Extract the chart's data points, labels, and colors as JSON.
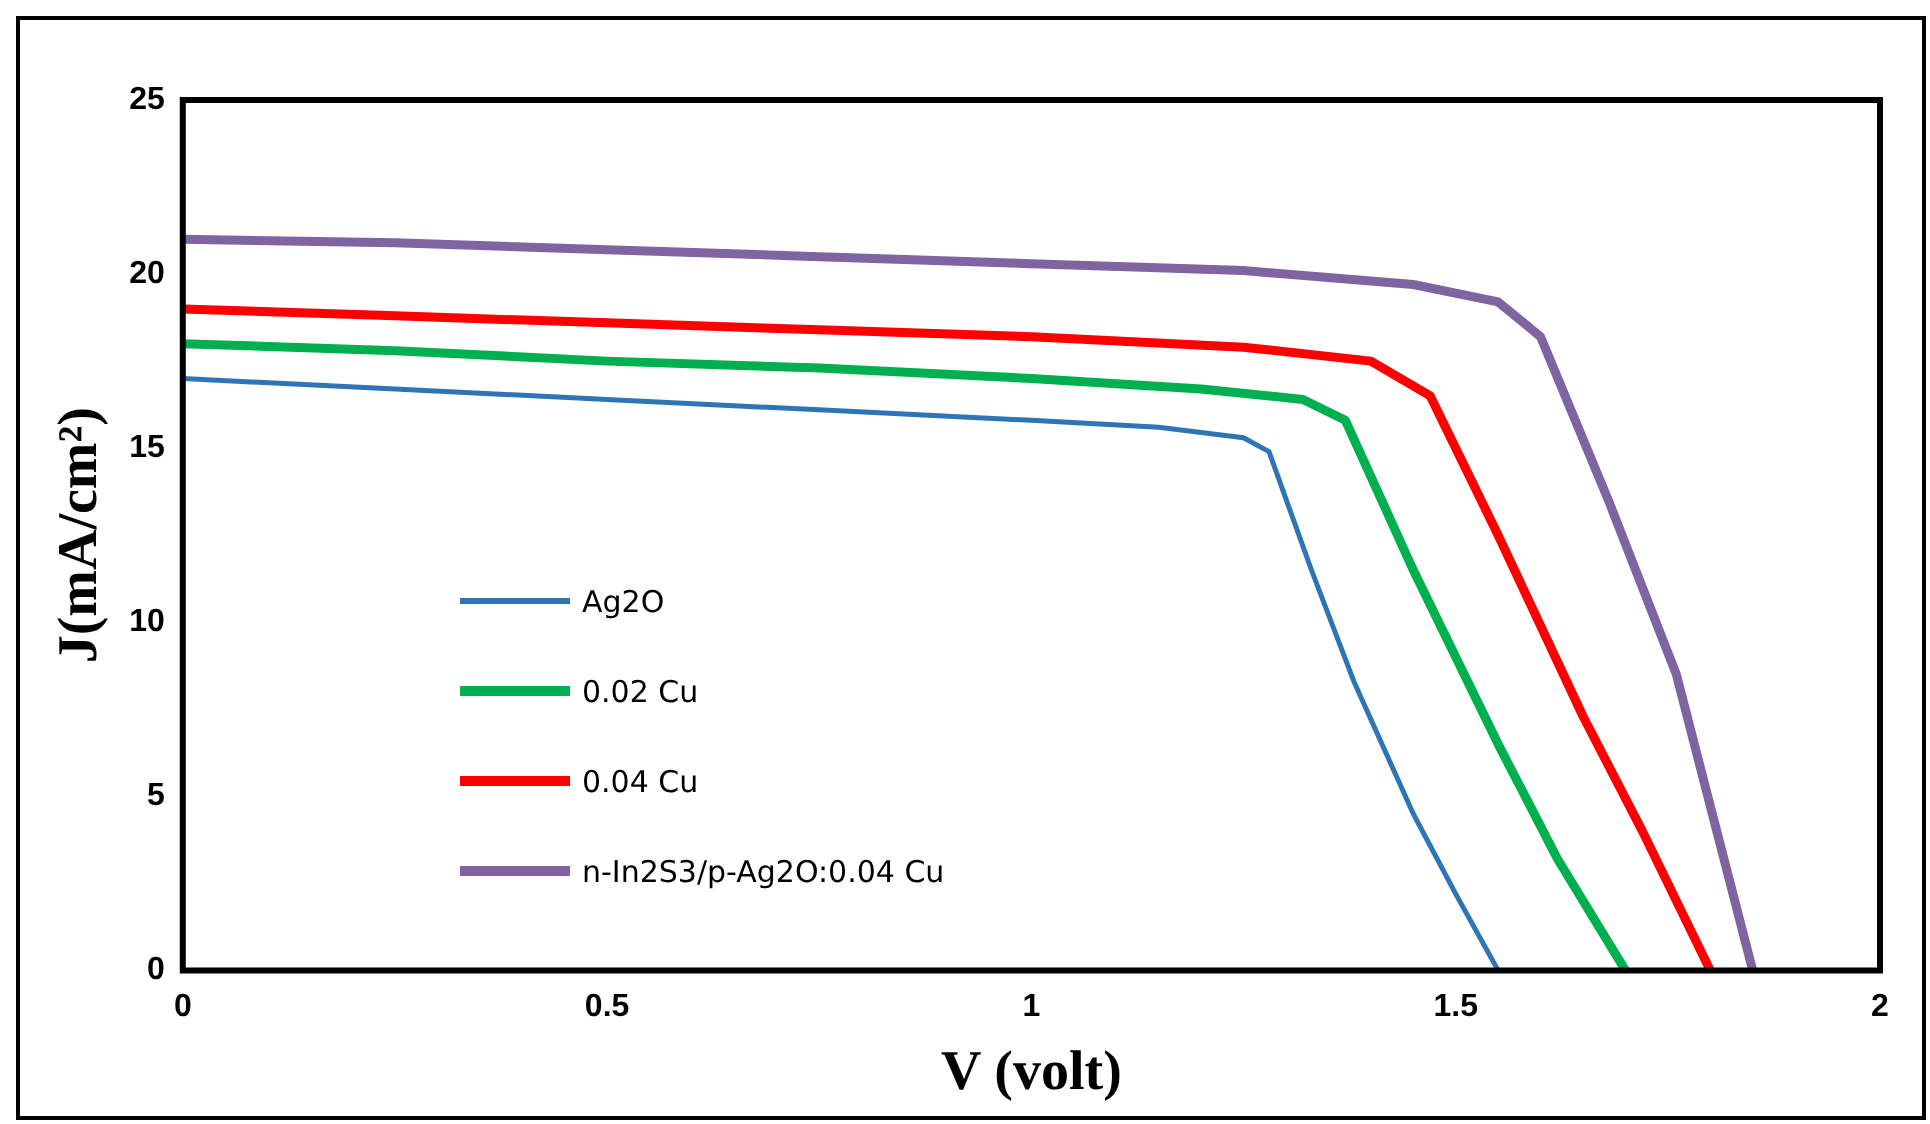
{
  "chart_data": {
    "type": "line",
    "xlabel": "V (volt)",
    "ylabel": "J(mA/cm²)",
    "xlim": [
      0,
      2
    ],
    "xticks": [
      0,
      0.5,
      1,
      1.5,
      2
    ],
    "ylim": [
      0,
      25
    ],
    "yticks": [
      0,
      5,
      10,
      15,
      20,
      25
    ],
    "grid": false,
    "legend": "left",
    "marker": "none",
    "line_style": "solid",
    "series": [
      {
        "name": "Ag2O",
        "color": "#2e75b6",
        "x": [
          0,
          0.25,
          0.5,
          0.75,
          1,
          1.15,
          1.25,
          1.28,
          1.33,
          1.38,
          1.45,
          1.5,
          1.55
        ],
        "values": [
          17,
          16.7,
          16.4,
          16.1,
          15.8,
          15.6,
          15.3,
          14.9,
          11.5,
          8.3,
          4.5,
          2.2,
          0
        ]
      },
      {
        "name": "0.02 Cu",
        "color": "#00b050",
        "x": [
          0,
          0.25,
          0.5,
          0.75,
          1,
          1.2,
          1.32,
          1.37,
          1.45,
          1.55,
          1.62,
          1.7
        ],
        "values": [
          18,
          17.8,
          17.5,
          17.3,
          17,
          16.7,
          16.4,
          15.8,
          11.5,
          6.5,
          3.2,
          0
        ]
      },
      {
        "name": "0.04 Cu",
        "color": "#ff0000",
        "x": [
          0,
          0.25,
          0.5,
          0.75,
          1,
          1.25,
          1.4,
          1.47,
          1.55,
          1.65,
          1.72,
          1.8
        ],
        "values": [
          19,
          18.8,
          18.6,
          18.4,
          18.2,
          17.9,
          17.5,
          16.5,
          12.5,
          7.3,
          4,
          0
        ]
      },
      {
        "name": "n-In2S3/p-Ag2O:0.04 Cu",
        "color": "#8064a2",
        "x": [
          0,
          0.25,
          0.5,
          0.75,
          1,
          1.25,
          1.45,
          1.55,
          1.6,
          1.68,
          1.76,
          1.85
        ],
        "values": [
          21,
          20.9,
          20.7,
          20.5,
          20.3,
          20.1,
          19.7,
          19.2,
          18.2,
          13.5,
          8.5,
          0
        ]
      }
    ]
  }
}
